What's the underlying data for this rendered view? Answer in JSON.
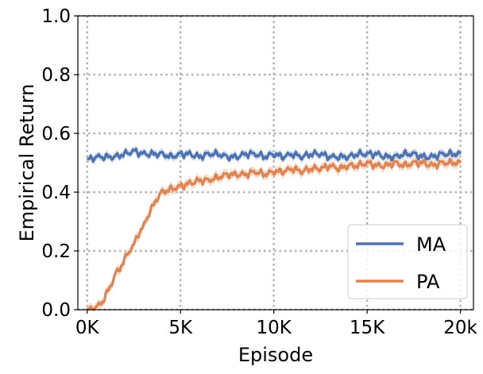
{
  "chart_data": {
    "type": "line",
    "title": "",
    "xlabel": "Episode",
    "ylabel": "Empirical Return",
    "xlim": [
      -500,
      20700
    ],
    "ylim": [
      0.0,
      1.0
    ],
    "xticks": [
      0,
      5000,
      10000,
      15000,
      20000
    ],
    "xtick_labels": [
      "0K",
      "5K",
      "10K",
      "15K",
      "20k"
    ],
    "yticks": [
      0.0,
      0.2,
      0.4,
      0.6,
      0.8,
      1.0
    ],
    "ytick_labels": [
      "0.0",
      "0.2",
      "0.4",
      "0.6",
      "0.8",
      "1.0"
    ],
    "grid": true,
    "legend_position": "lower-right",
    "series": [
      {
        "name": "MA",
        "color": "#4c72b0",
        "band_color": "#a8bde0",
        "x": [
          0,
          500,
          1000,
          1500,
          2000,
          2500,
          3000,
          3500,
          4000,
          4500,
          5000,
          5500,
          6000,
          6500,
          7000,
          7500,
          8000,
          8500,
          9000,
          9500,
          10000,
          10500,
          11000,
          11500,
          12000,
          12500,
          13000,
          13500,
          14000,
          14500,
          15000,
          15500,
          16000,
          16500,
          17000,
          17500,
          18000,
          18500,
          19000,
          19500,
          20000
        ],
        "y": [
          0.51,
          0.52,
          0.52,
          0.52,
          0.53,
          0.54,
          0.53,
          0.53,
          0.53,
          0.52,
          0.53,
          0.53,
          0.52,
          0.53,
          0.53,
          0.52,
          0.52,
          0.53,
          0.53,
          0.52,
          0.53,
          0.52,
          0.53,
          0.52,
          0.53,
          0.53,
          0.52,
          0.52,
          0.52,
          0.53,
          0.53,
          0.53,
          0.52,
          0.52,
          0.53,
          0.53,
          0.52,
          0.52,
          0.53,
          0.53,
          0.53
        ],
        "band": 0.012
      },
      {
        "name": "PA",
        "color": "#dd8452",
        "band_color": "#f2c3a4",
        "x": [
          0,
          250,
          500,
          750,
          1000,
          1250,
          1500,
          1750,
          2000,
          2250,
          2500,
          2750,
          3000,
          3250,
          3500,
          3750,
          4000,
          4500,
          5000,
          5500,
          6000,
          6500,
          7000,
          7500,
          8000,
          8500,
          9000,
          9500,
          10000,
          10500,
          11000,
          11500,
          12000,
          12500,
          13000,
          13500,
          14000,
          14500,
          15000,
          15500,
          16000,
          16500,
          17000,
          17500,
          18000,
          18500,
          19000,
          19500,
          20000
        ],
        "y": [
          0.0,
          0.0,
          0.01,
          0.02,
          0.05,
          0.08,
          0.12,
          0.14,
          0.17,
          0.2,
          0.22,
          0.26,
          0.28,
          0.32,
          0.35,
          0.38,
          0.4,
          0.41,
          0.42,
          0.43,
          0.44,
          0.44,
          0.45,
          0.46,
          0.46,
          0.46,
          0.47,
          0.46,
          0.47,
          0.47,
          0.48,
          0.47,
          0.48,
          0.48,
          0.49,
          0.48,
          0.49,
          0.49,
          0.5,
          0.49,
          0.49,
          0.5,
          0.49,
          0.5,
          0.5,
          0.49,
          0.5,
          0.5,
          0.5
        ],
        "band": 0.015
      }
    ]
  }
}
